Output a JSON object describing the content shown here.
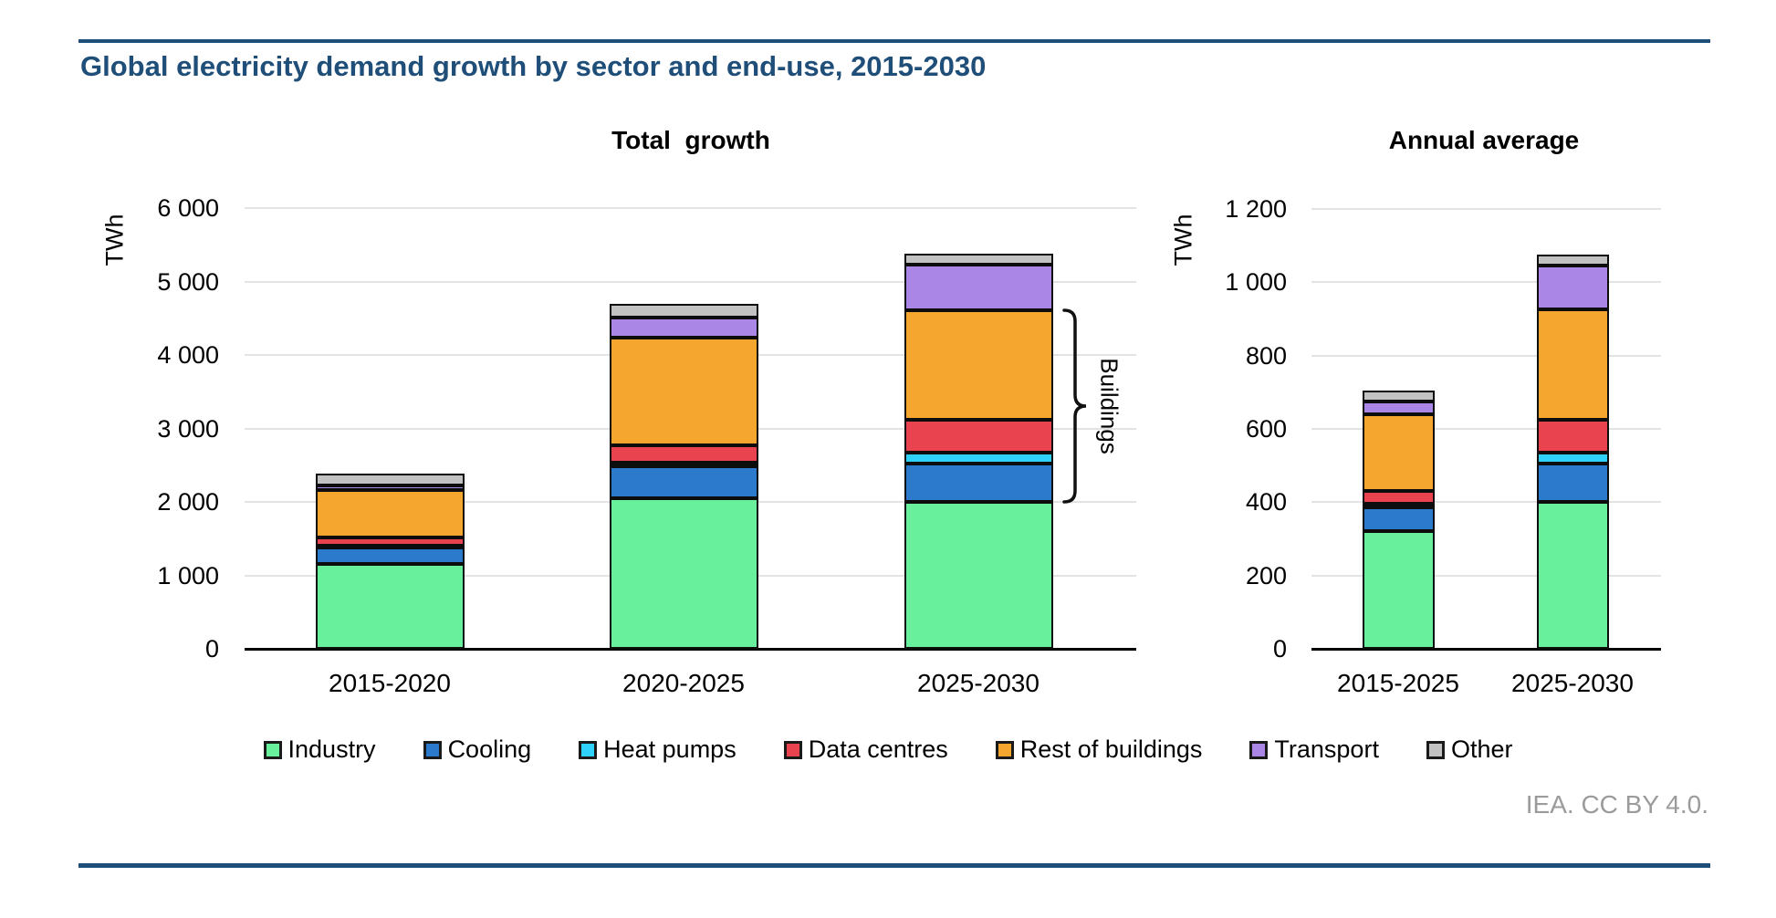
{
  "header": {
    "title": "Global electricity demand growth by sector and end-use, 2015-2030"
  },
  "chart_data": [
    {
      "type": "bar",
      "stacked": true,
      "title": "Total  growth",
      "xlabel": "",
      "ylabel": "TWh",
      "categories": [
        "2015-2020",
        "2020-2025",
        "2025-2030"
      ],
      "y_axis": {
        "min": 0,
        "max": 6000,
        "step": 1000,
        "tick_labels": [
          "0",
          "1 000",
          "2 000",
          "3 000",
          "4 000",
          "5 000",
          "6 000"
        ]
      },
      "grid": "horizontal",
      "series": [
        {
          "name": "Industry",
          "color": "#69F09D",
          "values": [
            1150,
            2050,
            2000
          ]
        },
        {
          "name": "Cooling",
          "color": "#2B7ACC",
          "values": [
            230,
            430,
            520
          ]
        },
        {
          "name": "Heat pumps",
          "color": "#2FD2FA",
          "values": [
            20,
            60,
            150
          ]
        },
        {
          "name": "Data centres",
          "color": "#E8434E",
          "values": [
            110,
            230,
            450
          ]
        },
        {
          "name": "Rest of buildings",
          "color": "#F4A62F",
          "values": [
            650,
            1470,
            1490
          ]
        },
        {
          "name": "Transport",
          "color": "#AA87E6",
          "values": [
            60,
            270,
            620
          ]
        },
        {
          "name": "Other",
          "color": "#C2C2C3",
          "values": [
            160,
            190,
            150
          ]
        }
      ],
      "totals": [
        2380,
        4700,
        5380
      ],
      "annotation": {
        "label": "Buildings",
        "category_index": 2,
        "from_series": "Cooling",
        "to_series": "Rest of buildings"
      }
    },
    {
      "type": "bar",
      "stacked": true,
      "title": "Annual average",
      "xlabel": "",
      "ylabel": "TWh",
      "categories": [
        "2015-2025",
        "2025-2030"
      ],
      "y_axis": {
        "min": 0,
        "max": 1200,
        "step": 200,
        "tick_labels": [
          "0",
          "200",
          "400",
          "600",
          "800",
          "1 000",
          "1 200"
        ]
      },
      "grid": "horizontal",
      "series": [
        {
          "name": "Industry",
          "color": "#69F09D",
          "values": [
            320,
            400
          ]
        },
        {
          "name": "Cooling",
          "color": "#2B7ACC",
          "values": [
            65,
            105
          ]
        },
        {
          "name": "Heat pumps",
          "color": "#2FD2FA",
          "values": [
            10,
            30
          ]
        },
        {
          "name": "Data centres",
          "color": "#E8434E",
          "values": [
            35,
            90
          ]
        },
        {
          "name": "Rest of buildings",
          "color": "#F4A62F",
          "values": [
            210,
            300
          ]
        },
        {
          "name": "Transport",
          "color": "#AA87E6",
          "values": [
            35,
            120
          ]
        },
        {
          "name": "Other",
          "color": "#C2C2C3",
          "values": [
            30,
            30
          ]
        }
      ],
      "totals": [
        705,
        1075
      ]
    }
  ],
  "legend": {
    "position": "bottom",
    "items": [
      "Industry",
      "Cooling",
      "Heat pumps",
      "Data centres",
      "Rest of buildings",
      "Transport",
      "Other"
    ]
  },
  "footer": {
    "attribution": "IEA. CC BY 4.0."
  },
  "colors": {
    "accent_navy": "#1F4E79",
    "gridline": "#E3E3E3",
    "attribution_gray": "#9B9B9B"
  }
}
